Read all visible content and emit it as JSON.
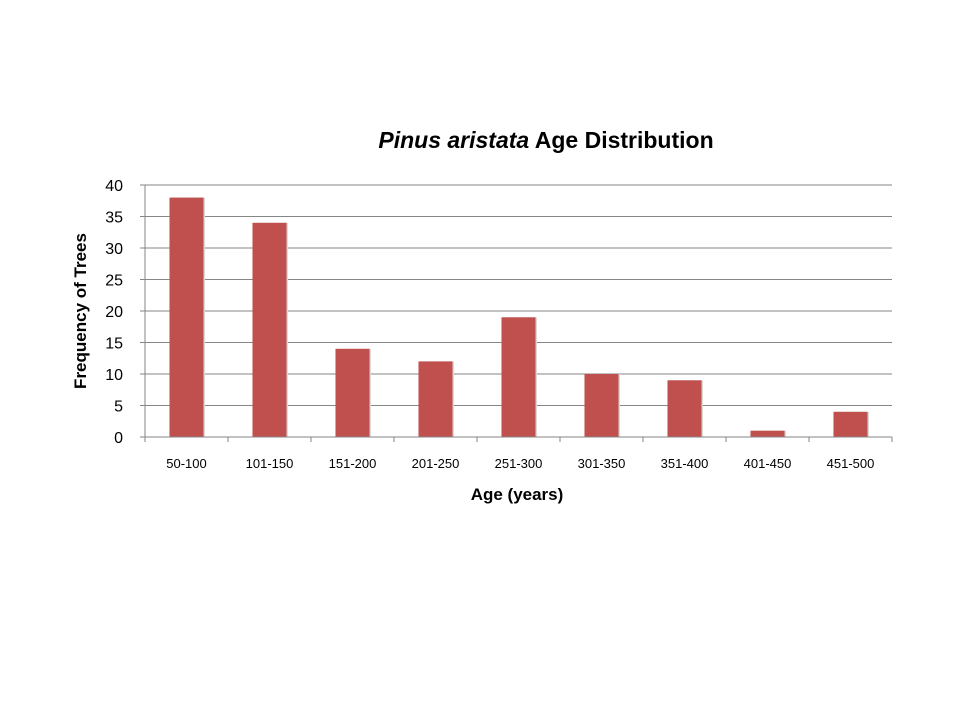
{
  "chart_data": {
    "type": "bar",
    "title": {
      "italic_part": "Pinus aristata",
      "rest": " Age Distribution"
    },
    "xlabel": "Age (years)",
    "ylabel": "Frequency of Trees",
    "categories": [
      "50-100",
      "101-150",
      "151-200",
      "201-250",
      "251-300",
      "301-350",
      "351-400",
      "401-450",
      "451-500"
    ],
    "values": [
      38,
      34,
      14,
      12,
      19,
      10,
      9,
      1,
      4
    ],
    "ylim": [
      0,
      40
    ],
    "yticks": [
      0,
      5,
      10,
      15,
      20,
      25,
      30,
      35,
      40
    ],
    "grid": true,
    "legend": "none",
    "bar_color": "#c0504d",
    "grid_color": "#868686"
  }
}
